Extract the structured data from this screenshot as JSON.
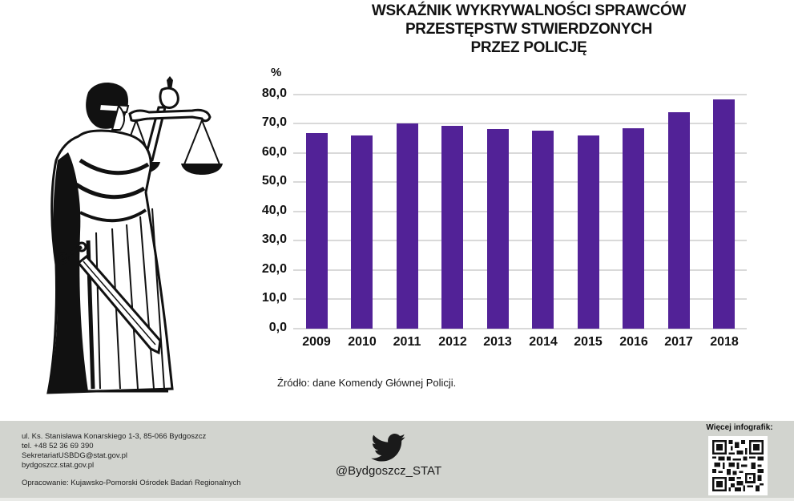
{
  "title": {
    "line1": "WSKAŹNIK WYKRYWALNOŚCI SPRAWCÓW",
    "line2": "PRZESTĘPSTW STWIERDZONYCH",
    "line3": "PRZEZ POLICJĘ"
  },
  "illustration": {
    "icon": "lady-justice-icon"
  },
  "chart": {
    "unit_label": "%",
    "y_ticks": [
      "80,0",
      "70,0",
      "60,0",
      "50,0",
      "40,0",
      "30,0",
      "20,0",
      "10,0",
      "0,0"
    ],
    "x_ticks": [
      "2009",
      "2010",
      "2011",
      "2012",
      "2013",
      "2014",
      "2015",
      "2016",
      "2017",
      "2018"
    ],
    "bar_color": "#522297"
  },
  "chart_data": {
    "type": "bar",
    "title": "WSKAŹNIK WYKRYWALNOŚCI SPRAWCÓW PRZESTĘPSTW STWIERDZONYCH PRZEZ POLICJĘ",
    "xlabel": "",
    "ylabel": "%",
    "categories": [
      "2009",
      "2010",
      "2011",
      "2012",
      "2013",
      "2014",
      "2015",
      "2016",
      "2017",
      "2018"
    ],
    "values": [
      66.8,
      66.0,
      70.1,
      69.3,
      68.2,
      67.7,
      66.0,
      68.5,
      74.0,
      78.4
    ],
    "ylim": [
      0,
      80
    ],
    "y_ticks": [
      0,
      10,
      20,
      30,
      40,
      50,
      60,
      70,
      80
    ],
    "grid": true,
    "legend": null,
    "color": "#522297"
  },
  "source": "Źródło: dane Komendy Głównej Policji.",
  "footer": {
    "address": "ul. Ks. Stanisława Konarskiego 1-3, 85-066 Bydgoszcz",
    "phone": "tel. +48 52 36 69 390",
    "email": "SekretariatUSBDG@stat.gov.pl",
    "website": "bydgoszcz.stat.gov.pl",
    "prepared_by": "Opracowanie: Kujawsko-Pomorski Ośrodek Badań Regionalnych",
    "twitter_icon": "twitter-bird-icon",
    "twitter_handle": "@Bydgoszcz_STAT",
    "more_label": "Więcej infografik:",
    "qr_icon": "qr-code-icon"
  }
}
